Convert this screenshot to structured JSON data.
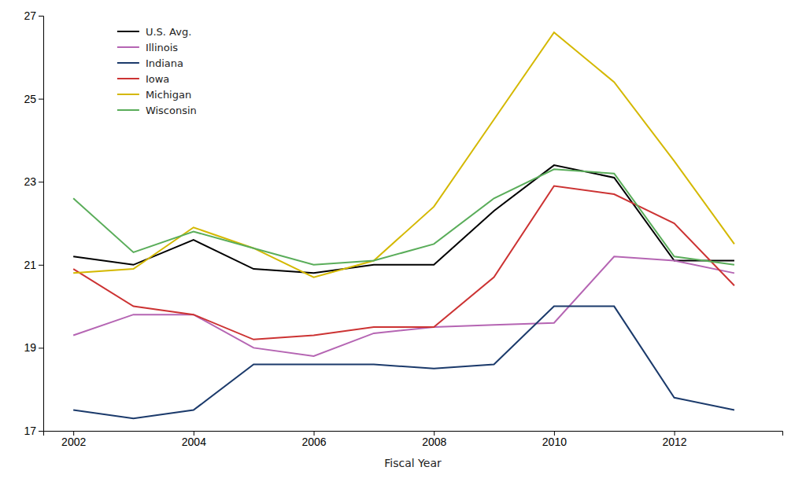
{
  "chart_data": {
    "type": "line",
    "xlabel": "Fiscal Year",
    "x": [
      2002,
      2003,
      2004,
      2005,
      2006,
      2007,
      2008,
      2009,
      2010,
      2011,
      2012,
      2013
    ],
    "series": [
      {
        "name": "U.S. Avg.",
        "color": "#000000",
        "values": [
          21.2,
          21.0,
          21.6,
          20.9,
          20.8,
          21.0,
          21.0,
          22.3,
          23.4,
          23.1,
          21.1,
          21.1
        ]
      },
      {
        "name": "Illinois",
        "color": "#b565b3",
        "values": [
          19.3,
          19.8,
          19.8,
          19.0,
          18.8,
          19.35,
          19.5,
          19.55,
          19.6,
          21.2,
          21.1,
          20.8
        ]
      },
      {
        "name": "Indiana",
        "color": "#1b3a6b",
        "values": [
          17.5,
          17.3,
          17.5,
          18.6,
          18.6,
          18.6,
          18.5,
          18.6,
          20.0,
          20.0,
          17.8,
          17.5
        ]
      },
      {
        "name": "Iowa",
        "color": "#cc3333",
        "values": [
          20.9,
          20.0,
          19.8,
          19.2,
          19.3,
          19.5,
          19.5,
          20.7,
          22.9,
          22.7,
          22.0,
          20.5
        ]
      },
      {
        "name": "Michigan",
        "color": "#d4b800",
        "values": [
          20.8,
          20.9,
          21.9,
          21.4,
          20.7,
          21.1,
          22.4,
          24.5,
          26.6,
          25.4,
          23.5,
          21.5
        ]
      },
      {
        "name": "Wisconsin",
        "color": "#5aad5a",
        "values": [
          22.6,
          21.3,
          21.8,
          21.4,
          21.0,
          21.1,
          21.5,
          22.6,
          23.3,
          23.2,
          21.2,
          21.0
        ]
      }
    ],
    "xlim": [
      2001.5,
      2013.8
    ],
    "ylim": [
      17,
      27
    ],
    "xticks": [
      2002,
      2004,
      2006,
      2008,
      2010,
      2012
    ],
    "yticks": [
      17,
      19,
      21,
      23,
      25,
      27
    ],
    "grid": false,
    "legend": "upper left"
  }
}
